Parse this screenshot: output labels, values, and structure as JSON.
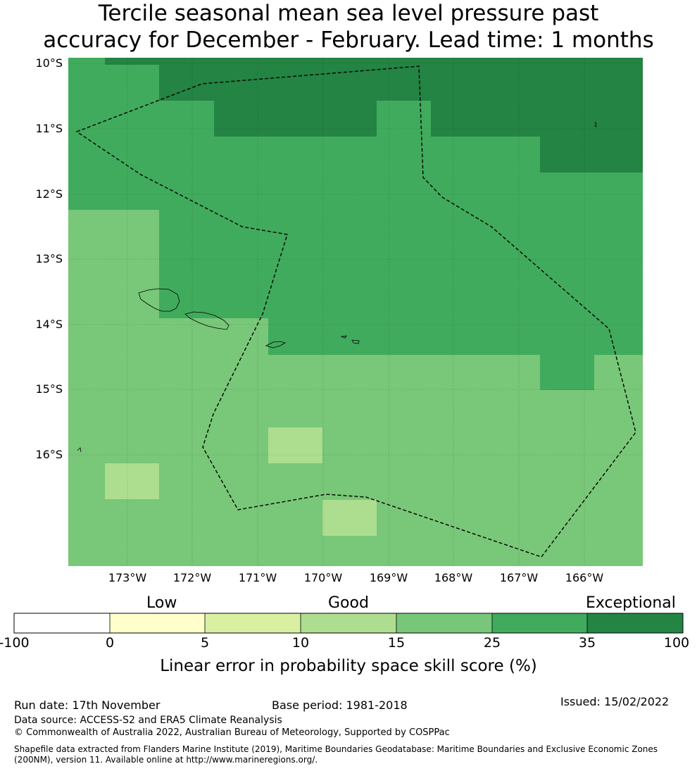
{
  "title": {
    "line1": "Tercile seasonal mean sea level pressure past",
    "line2": "accuracy for December - February. Lead time: 1 months"
  },
  "map": {
    "lat_labels": [
      "10°S",
      "11°S",
      "12°S",
      "13°S",
      "14°S",
      "15°S",
      "16°S"
    ],
    "lon_labels": [
      "173°W",
      "172°W",
      "171°W",
      "170°W",
      "169°W",
      "168°W",
      "167°W",
      "166°W"
    ],
    "grid_lines": true,
    "eez_boundary_style": "dashed",
    "colors": {
      "c15_25": "#79c779",
      "c25_35": "#41ab5d",
      "c35_100": "#238443",
      "c10_15": "#addd8e"
    }
  },
  "colorbar": {
    "categories": [
      "Low",
      "Good",
      "Exceptional"
    ],
    "ticks": [
      "-100",
      "0",
      "5",
      "10",
      "15",
      "25",
      "35",
      "100"
    ],
    "colors": [
      "#ffffff",
      "#ffffcc",
      "#d9f0a3",
      "#addd8e",
      "#78c679",
      "#41ab5d",
      "#238443"
    ],
    "label": "Linear error in probability space skill score (%)"
  },
  "footer": {
    "run_date": "Run date: 17th November",
    "base_period": "Base period: 1981-2018",
    "issued": "Issued: 15/02/2022",
    "data_source": "Data source: ACCESS-S2 and ERA5 Climate Reanalysis",
    "copyright": "© Commonwealth of Australia 2022, Australian Bureau of Meteorology, Supported by COSPPac",
    "shapefile_line1": "Shapefile data extracted from Flanders Marine Institute (2019), Maritime Boundaries Geodatabase: Maritime Boundaries and Exclusive Economic Zones",
    "shapefile_line2": "(200NM), version 11. Available online at http://www.marineregions.org/."
  }
}
